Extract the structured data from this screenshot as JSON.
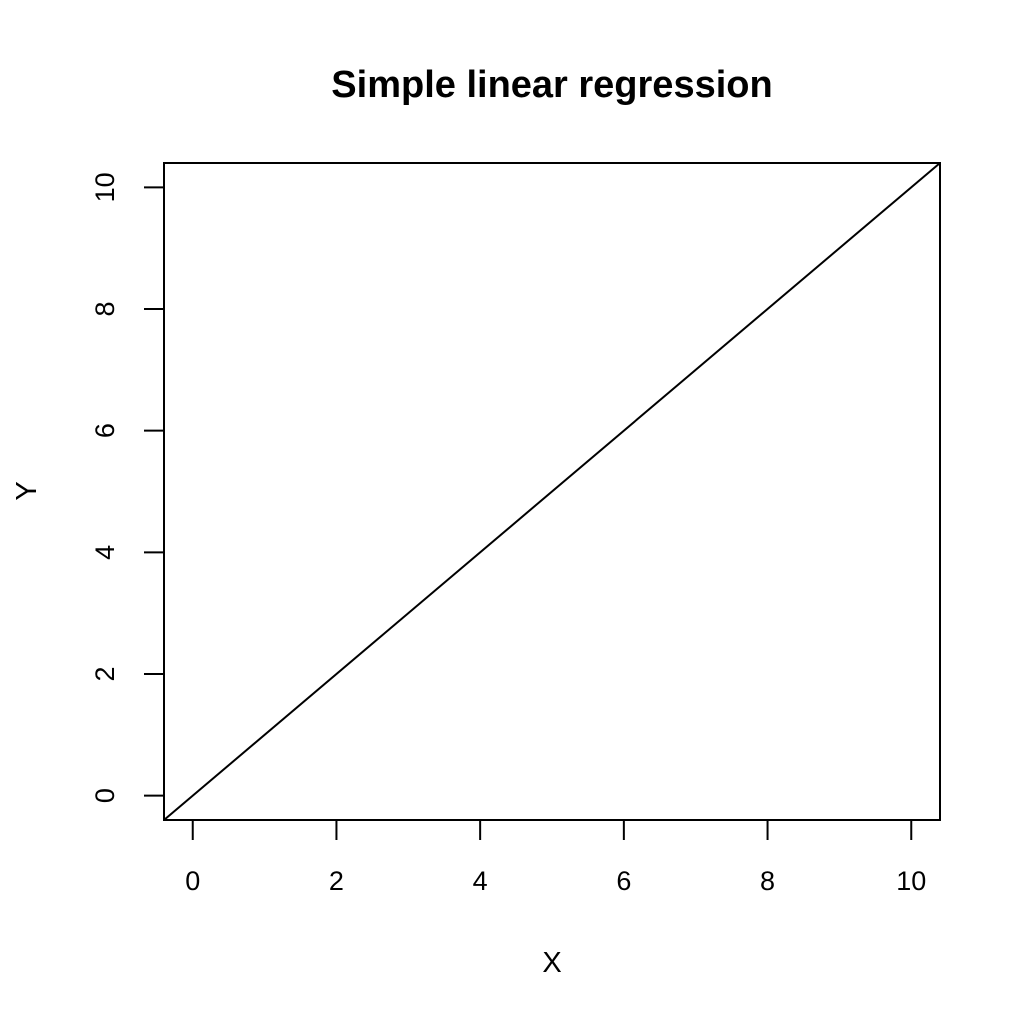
{
  "chart_data": {
    "type": "line",
    "title": "Simple linear regression",
    "xlabel": "X",
    "ylabel": "Y",
    "xlim": [
      -0.4,
      10.4
    ],
    "ylim": [
      -0.4,
      10.4
    ],
    "xticks": [
      0,
      2,
      4,
      6,
      8,
      10
    ],
    "yticks": [
      0,
      2,
      4,
      6,
      8,
      10
    ],
    "grid": false,
    "legend": "none",
    "series": [
      {
        "x": [
          -0.4,
          10.4
        ],
        "y": [
          -0.4,
          10.4
        ],
        "color": "#000000"
      }
    ]
  }
}
